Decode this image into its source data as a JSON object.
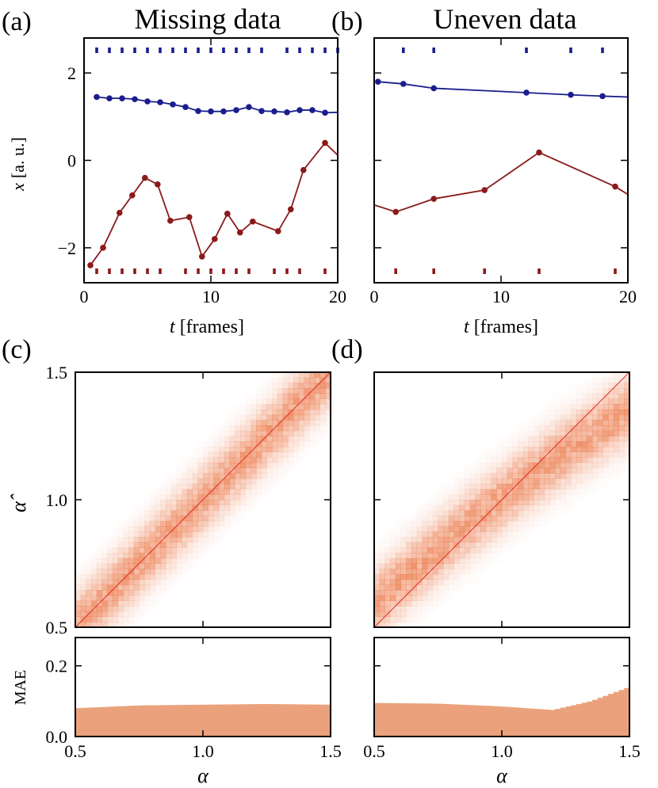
{
  "colors": {
    "blue": "#1a1e8c",
    "red": "#8b1a1a",
    "heat": "#e8622a",
    "bar": "#eba27c",
    "diag": "#e0302a"
  },
  "panels": {
    "a": {
      "letter": "(a)",
      "title": "Missing data"
    },
    "b": {
      "letter": "(b)",
      "title": "Uneven data"
    },
    "c": {
      "letter": "(c)"
    },
    "d": {
      "letter": "(d)"
    }
  },
  "axes": {
    "t_label": "t",
    "t_unit": "[frames]",
    "x_label": "x",
    "x_unit": "[a. u.]",
    "alpha_label": "α",
    "alpha_hat_label": "α̂",
    "mae_label": "MAE"
  },
  "chart_data": [
    {
      "id": "a",
      "type": "line",
      "title": "Missing data",
      "xlabel": "t [frames]",
      "ylabel": "x [a. u.]",
      "xlim": [
        0,
        20
      ],
      "ylim": [
        -2.8,
        2.8
      ],
      "xticks": [
        "0",
        "10",
        "20"
      ],
      "yticks": [
        "-2",
        "0",
        "2"
      ],
      "series": [
        {
          "name": "blue trajectory",
          "color": "#1a1e8c",
          "x": [
            1,
            2,
            3,
            4,
            5,
            6,
            7,
            8,
            9,
            10,
            11,
            12,
            13,
            14,
            15,
            16,
            17,
            18,
            19,
            20
          ],
          "y": [
            1.45,
            1.42,
            1.42,
            1.4,
            1.35,
            1.33,
            1.28,
            1.22,
            1.13,
            1.12,
            1.12,
            1.15,
            1.22,
            1.13,
            1.12,
            1.1,
            1.15,
            1.15,
            1.09,
            1.1
          ]
        },
        {
          "name": "red trajectory",
          "color": "#8b1a1a",
          "x": [
            0.5,
            1.5,
            2.8,
            3.8,
            4.8,
            5.8,
            6.8,
            8.3,
            9.3,
            10.3,
            11.3,
            12.3,
            13.3,
            15.3,
            16.3,
            17.3,
            19.0,
            20.0
          ],
          "y": [
            -2.4,
            -2.0,
            -1.2,
            -0.8,
            -0.4,
            -0.55,
            -1.38,
            -1.3,
            -2.2,
            -1.8,
            -1.22,
            -1.65,
            -1.4,
            -1.62,
            -1.12,
            -0.22,
            0.4,
            0.12
          ]
        }
      ],
      "sample_marks": {
        "blue": [
          1,
          2,
          3,
          4,
          5,
          6,
          7,
          8,
          9,
          10,
          11,
          12,
          13,
          14,
          16,
          17,
          18,
          19,
          20
        ],
        "red": [
          1,
          2,
          3,
          4,
          5,
          6,
          8,
          9,
          10,
          11,
          12,
          13,
          15,
          16,
          17,
          19
        ]
      }
    },
    {
      "id": "b",
      "type": "line",
      "title": "Uneven data",
      "xlabel": "t [frames]",
      "ylabel": "",
      "xlim": [
        0,
        20
      ],
      "ylim": [
        -2.8,
        2.8
      ],
      "xticks": [
        "0",
        "10",
        "20"
      ],
      "yticks": [],
      "series": [
        {
          "name": "blue trajectory",
          "color": "#1a1e8c",
          "x": [
            0.3,
            2.3,
            4.7,
            12.0,
            15.5,
            18.0,
            20.0
          ],
          "y": [
            1.8,
            1.75,
            1.65,
            1.55,
            1.5,
            1.47,
            1.45
          ]
        },
        {
          "name": "red trajectory",
          "color": "#8b1a1a",
          "x": [
            0.0,
            1.7,
            4.7,
            8.7,
            13.0,
            19.0,
            20.0
          ],
          "y": [
            -1.02,
            -1.18,
            -0.88,
            -0.68,
            0.18,
            -0.6,
            -0.78
          ]
        }
      ],
      "sample_marks": {
        "blue": [
          2.3,
          4.7,
          12.0,
          15.5,
          18.0
        ],
        "red": [
          1.7,
          4.7,
          8.7,
          13.0,
          19.0
        ]
      }
    },
    {
      "id": "c",
      "type": "heatmap",
      "xlabel": "α",
      "ylabel": "α̂",
      "xlim": [
        0.5,
        1.5
      ],
      "ylim": [
        0.5,
        1.5
      ],
      "yticks": [
        "0.5",
        "1.0",
        "1.5"
      ],
      "diagonal": true,
      "bias": [
        0.0,
        0.0
      ]
    },
    {
      "id": "c-mae",
      "type": "bar",
      "xlabel": "α",
      "ylabel": "MAE",
      "xlim": [
        0.5,
        1.5
      ],
      "ylim": [
        0,
        0.28
      ],
      "xticks": [
        "0.5",
        "1.0",
        "1.5"
      ],
      "yticks": [
        "0.0",
        "0.2"
      ],
      "x": [
        0.5,
        0.75,
        1.0,
        1.25,
        1.5
      ],
      "values": [
        0.08,
        0.088,
        0.09,
        0.092,
        0.09
      ]
    },
    {
      "id": "d",
      "type": "heatmap",
      "xlabel": "α",
      "ylabel": "",
      "xlim": [
        0.5,
        1.5
      ],
      "ylim": [
        0.5,
        1.5
      ],
      "yticks": [],
      "diagonal": true,
      "bias": [
        0.09,
        -0.15
      ]
    },
    {
      "id": "d-mae",
      "type": "bar",
      "xlabel": "α",
      "ylabel": "",
      "xlim": [
        0.5,
        1.5
      ],
      "ylim": [
        0,
        0.28
      ],
      "xticks": [
        "0.5",
        "1.0",
        "1.5"
      ],
      "yticks": [],
      "x": [
        0.5,
        0.75,
        1.0,
        1.2,
        1.35,
        1.5
      ],
      "values": [
        0.095,
        0.093,
        0.085,
        0.075,
        0.1,
        0.14
      ]
    }
  ]
}
